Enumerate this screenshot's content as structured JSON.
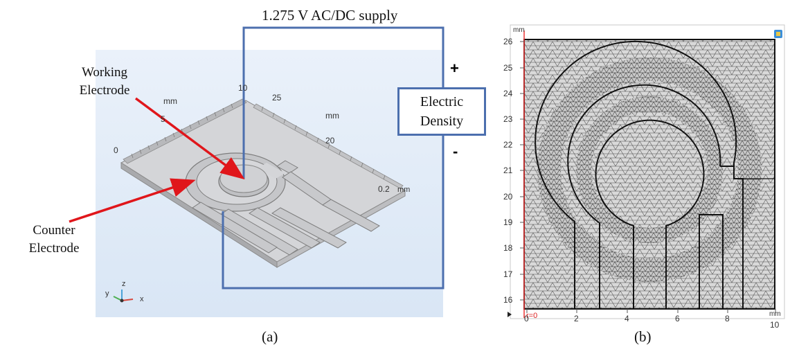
{
  "panel_a": {
    "supply_label": "1.275 V AC/DC supply",
    "plus_sign": "+",
    "minus_sign": "-",
    "box_line1": "Electric",
    "box_line2": "Density",
    "working_line1": "Working",
    "working_line2": "Electrode",
    "counter_line1": "Counter",
    "counter_line2": "Electrode",
    "axis_labels": {
      "mm_left": "mm",
      "tick_5": "5",
      "tick_0": "0",
      "tick_10": "10",
      "tick_25": "25",
      "mm_right": "mm",
      "tick_20": "20",
      "thickness": "0.2",
      "thickness_unit": "mm"
    },
    "triad": {
      "y": "y",
      "z": "z",
      "x": "x"
    },
    "caption": "(a)"
  },
  "panel_b": {
    "unit_top": "mm",
    "unit_bottom": "mm",
    "r_label": "r=0",
    "y_ticks": [
      "26",
      "25",
      "24",
      "23",
      "22",
      "21",
      "20",
      "19",
      "18",
      "17",
      "16"
    ],
    "x_ticks": [
      "0",
      "2",
      "4",
      "6",
      "8",
      "10"
    ],
    "caption": "(b)"
  },
  "colors": {
    "wire": "#4c6fae",
    "arrow": "#e0161b",
    "mesh": "#3a3a3a",
    "electrode": "#c9c9cb"
  }
}
